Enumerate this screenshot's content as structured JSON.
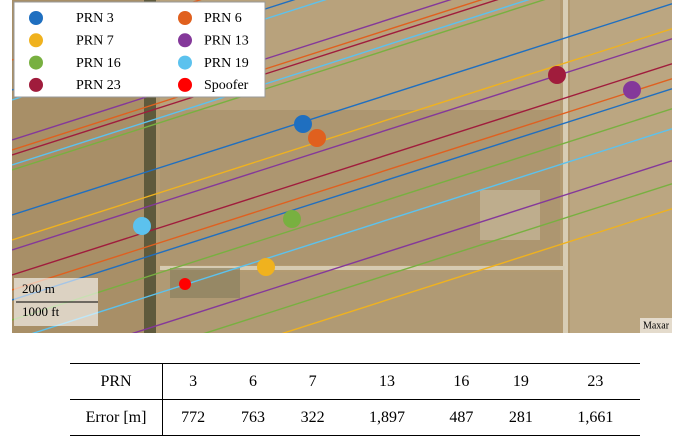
{
  "legend": [
    {
      "label": "PRN 3",
      "color": "#1f6fc0"
    },
    {
      "label": "PRN 6",
      "color": "#e0601e"
    },
    {
      "label": "PRN 7",
      "color": "#f0b21e"
    },
    {
      "label": "PRN 13",
      "color": "#84389a"
    },
    {
      "label": "PRN 16",
      "color": "#78b040"
    },
    {
      "label": "PRN 19",
      "color": "#5cc2ee"
    },
    {
      "label": "PRN 23",
      "color": "#a01c3c"
    },
    {
      "label": "Spoofer",
      "color": "#ff0000"
    }
  ],
  "scale": {
    "metric": "200 m",
    "imperial": "1000 ft"
  },
  "credit": "Maxar",
  "table": {
    "header": [
      "PRN",
      "3",
      "6",
      "7",
      "13",
      "16",
      "19",
      "23"
    ],
    "rows": [
      [
        "Error [m]",
        "772",
        "763",
        "322",
        "1,897",
        "487",
        "281",
        "1,661"
      ]
    ]
  }
}
